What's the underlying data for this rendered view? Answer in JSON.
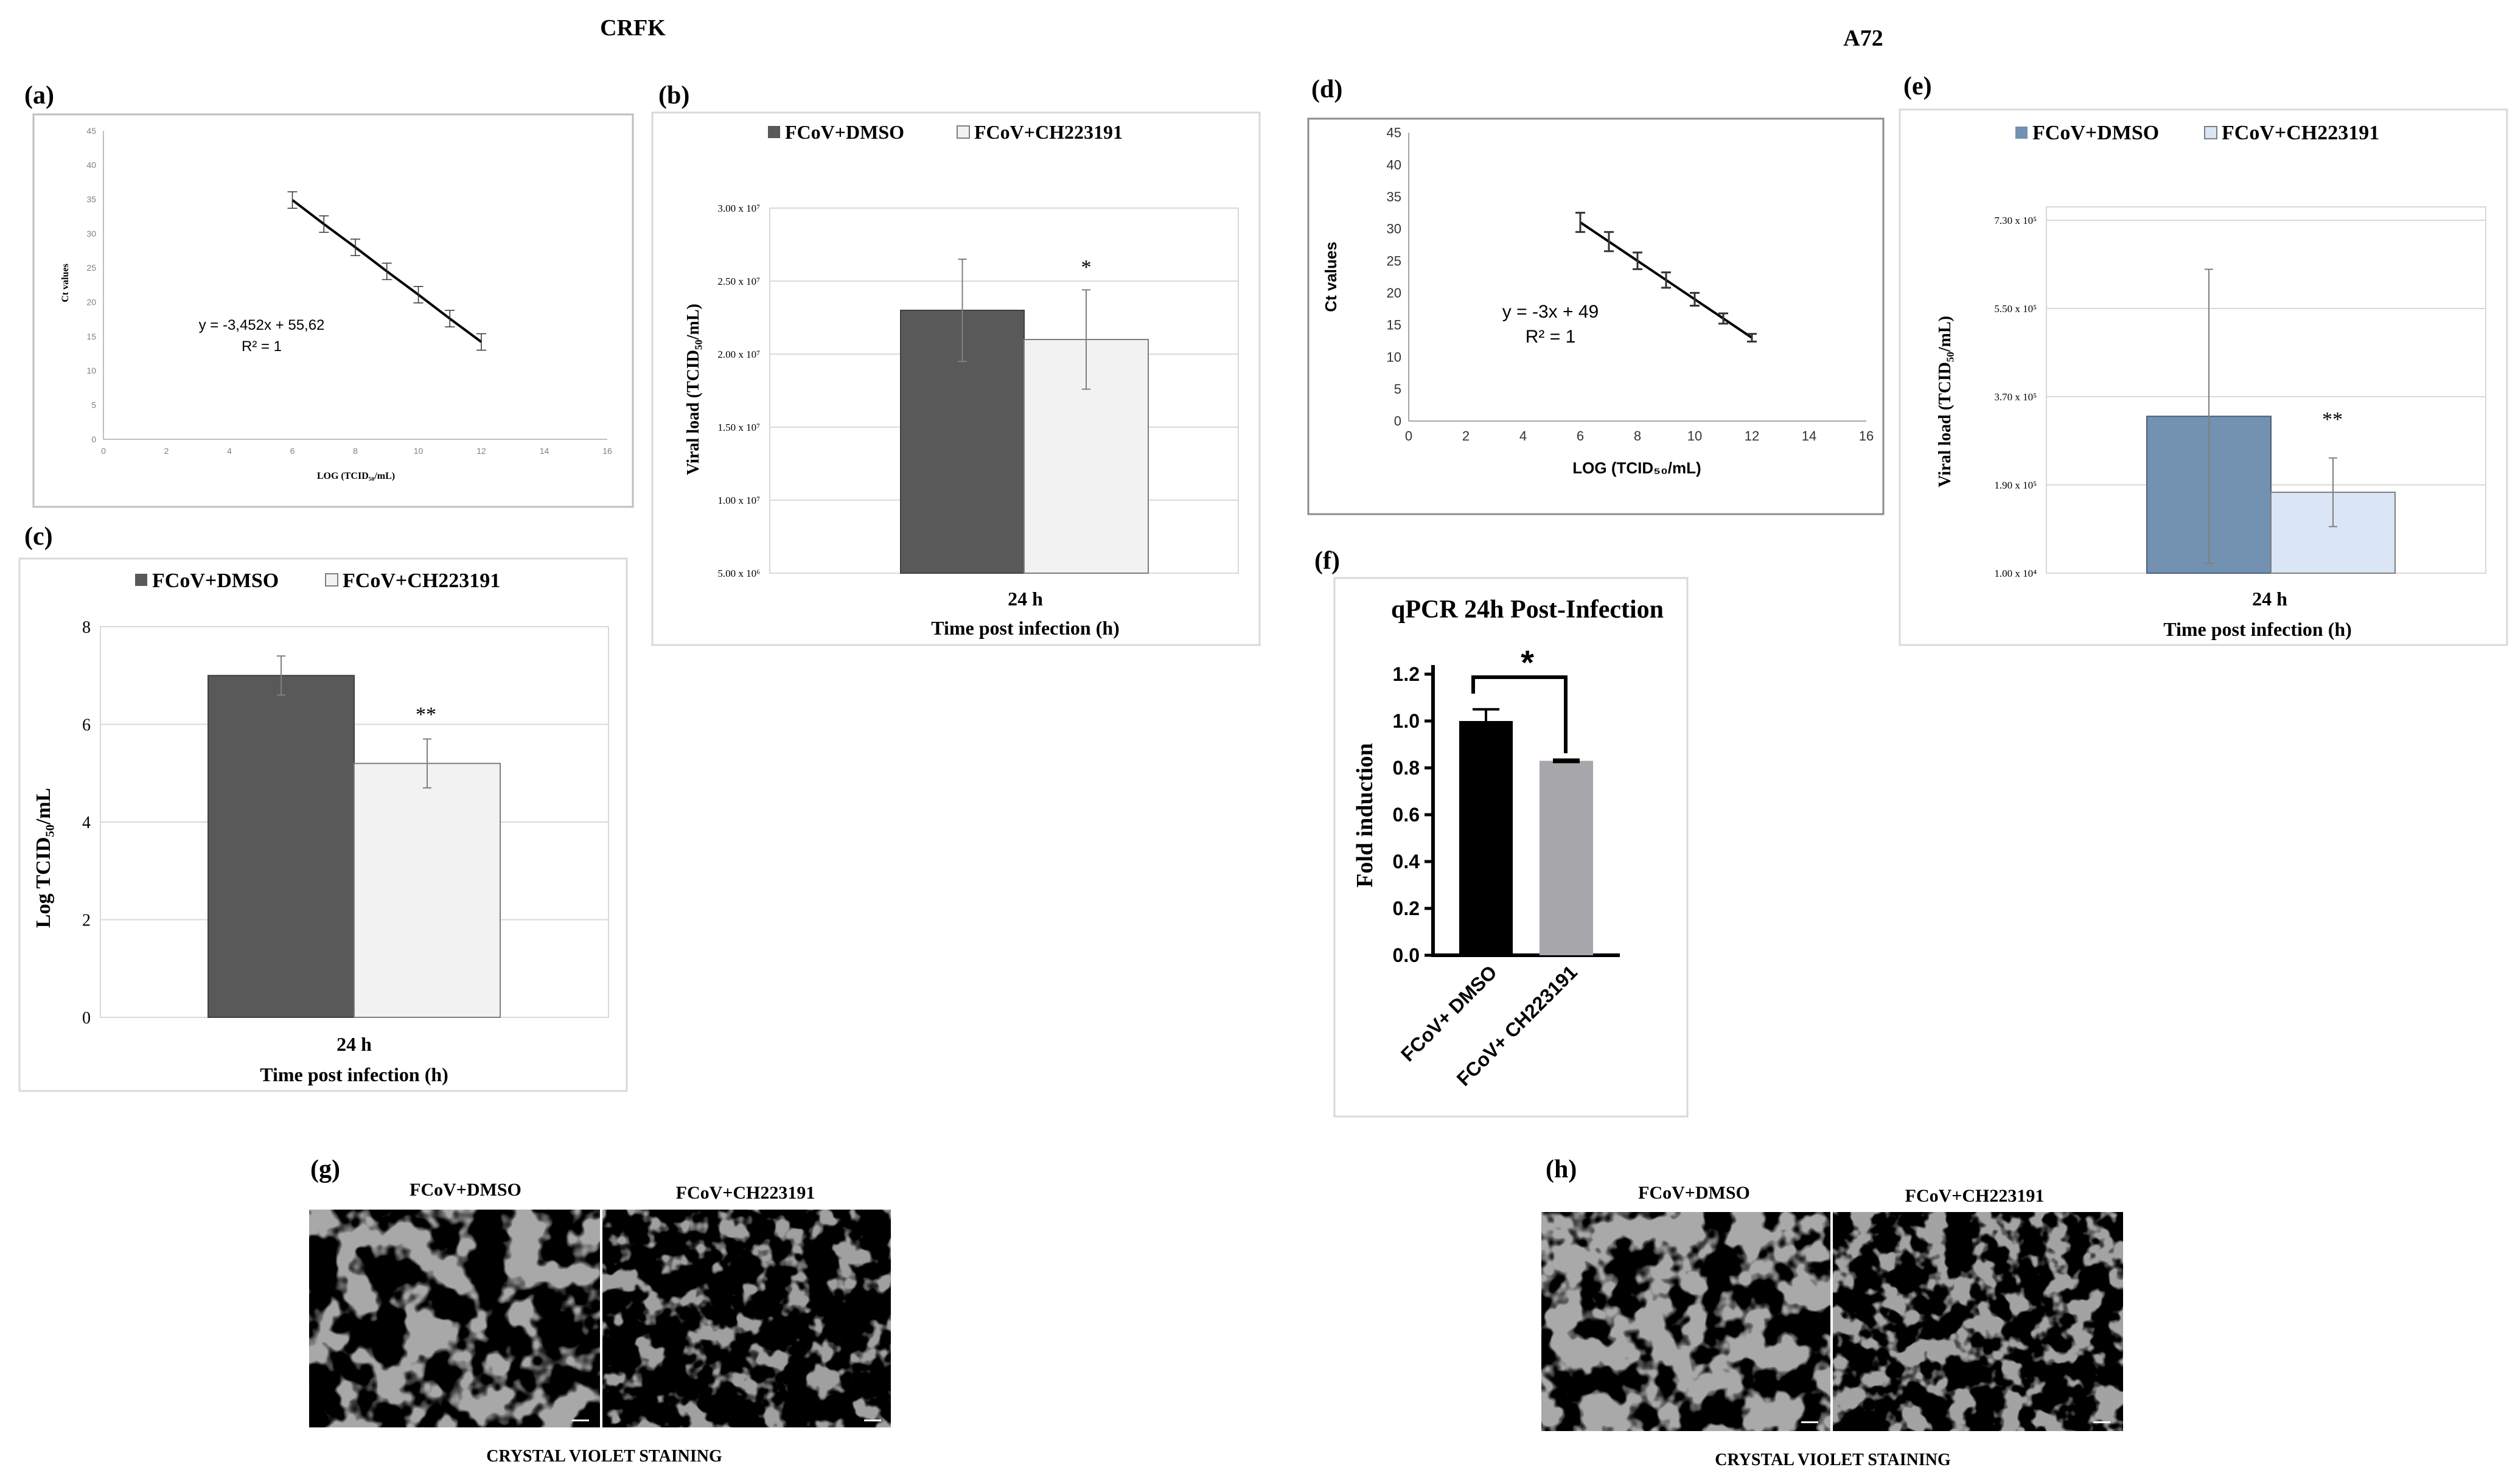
{
  "figure": {
    "group_left": "CRFK",
    "group_right": "A72",
    "labels": {
      "a": "(a)",
      "b": "(b)",
      "c": "(c)",
      "d": "(d)",
      "e": "(e)",
      "f": "(f)",
      "g": "(g)",
      "h": "(h)"
    },
    "legend": {
      "dmso": "FCoV+DMSO",
      "ch": "FCoV+CH223191"
    },
    "colors": {
      "dark_gray": "#595959",
      "light_gray": "#f2f2f2",
      "steel_blue": "#7391b0",
      "light_blue": "#dae6f6",
      "black": "#000000",
      "mid_gray": "#a6a6ab"
    },
    "g": {
      "left_caption": "FCoV+DMSO",
      "right_caption": "FCoV+CH223191",
      "footer": "CRYSTAL VIOLET STAINING"
    },
    "h": {
      "left_caption": "FCoV+DMSO",
      "right_caption": "FCoV+CH223191",
      "footer": "CRYSTAL VIOLET STAINING"
    }
  },
  "chart_data": [
    {
      "id": "a",
      "type": "line",
      "x": [
        6,
        7,
        8,
        9,
        10,
        11,
        12
      ],
      "y": [
        34.9,
        31.4,
        28.0,
        24.5,
        21.1,
        17.6,
        14.2
      ],
      "xlabel": "LOG (TCID₅₀/mL)",
      "ylabel": "Ct values",
      "xlim": [
        0,
        16
      ],
      "ylim": [
        0,
        45
      ],
      "xticks": [
        "0",
        "2",
        "4",
        "6",
        "8",
        "10",
        "12",
        "14",
        "16"
      ],
      "yticks": [
        "0",
        "5",
        "10",
        "15",
        "20",
        "25",
        "30",
        "35",
        "40",
        "45"
      ],
      "equation": "y = -3,452x + 55,62",
      "r2": "R² = 1",
      "grid": false
    },
    {
      "id": "b",
      "type": "bar",
      "categories": [
        "24 h"
      ],
      "xlabel": "Time post infection (h)",
      "ylabel": "Viral load (TCID₅₀/mL)",
      "yticks": [
        "5.00 x 10⁶",
        "1.00 x 10⁷",
        "1.50 x 10⁷",
        "2.00 x 10⁷",
        "2.50 x 10⁷",
        "3.00 x 10⁷"
      ],
      "series": [
        {
          "name": "FCoV+DMSO",
          "values": [
            23000000
          ],
          "error": [
            3500000
          ]
        },
        {
          "name": "FCoV+CH223191",
          "values": [
            21000000
          ],
          "error": [
            3400000
          ]
        }
      ],
      "annotation": "*",
      "grid": true,
      "legend": "top"
    },
    {
      "id": "c",
      "type": "bar",
      "categories": [
        "24 h"
      ],
      "xlabel": "Time post infection (h)",
      "ylabel": "Log TCID₅₀/mL",
      "ylim": [
        0,
        8
      ],
      "yticks": [
        "0",
        "2",
        "4",
        "6",
        "8"
      ],
      "series": [
        {
          "name": "FCoV+DMSO",
          "values": [
            7.0
          ],
          "error": [
            0.4
          ]
        },
        {
          "name": "FCoV+CH223191",
          "values": [
            5.2
          ],
          "error": [
            0.5
          ]
        }
      ],
      "annotation": "**",
      "grid": true,
      "legend": "top"
    },
    {
      "id": "d",
      "type": "line",
      "x": [
        6,
        7,
        8,
        9,
        10,
        11,
        12
      ],
      "y": [
        31,
        28,
        25,
        22,
        19,
        16,
        13
      ],
      "error": [
        1.5,
        1.5,
        1.3,
        1.2,
        1.0,
        0.8,
        0.6
      ],
      "xlabel": "LOG (TCID₅₀/mL)",
      "ylabel": "Ct values",
      "xlim": [
        0,
        16
      ],
      "ylim": [
        0,
        45
      ],
      "xticks": [
        "0",
        "2",
        "4",
        "6",
        "8",
        "10",
        "12",
        "14",
        "16"
      ],
      "yticks": [
        "0",
        "5",
        "10",
        "15",
        "20",
        "25",
        "30",
        "35",
        "40",
        "45"
      ],
      "equation": "y = -3x + 49",
      "r2": "R² = 1",
      "grid": false
    },
    {
      "id": "e",
      "type": "bar",
      "categories": [
        "24 h"
      ],
      "xlabel": "Time post infection (h)",
      "ylabel": "Viral load (TCID₅₀/mL)",
      "yticks": [
        "1.00 x 10⁴",
        "1.90 x 10⁵",
        "3.70 x 10⁵",
        "5.50 x 10⁵",
        "7.30 x 10⁵"
      ],
      "series": [
        {
          "name": "FCoV+DMSO",
          "values": [
            330000
          ],
          "error": [
            300000
          ]
        },
        {
          "name": "FCoV+CH223191",
          "values": [
            175000
          ],
          "error": [
            70000
          ]
        }
      ],
      "annotation": "**",
      "grid": true,
      "legend": "top"
    },
    {
      "id": "f",
      "type": "bar",
      "title": "qPCR 24h Post-Infection",
      "categories": [
        "FCoV+ DMSO",
        "FCoV+ CH223191"
      ],
      "ylabel": "Fold induction",
      "ylim": [
        0,
        1.2
      ],
      "yticks": [
        "0.0",
        "0.2",
        "0.4",
        "0.6",
        "0.8",
        "1.0",
        "1.2"
      ],
      "series": [
        {
          "values": [
            1.0,
            0.83
          ],
          "error": [
            0.05,
            0.005
          ]
        }
      ],
      "annotation": "*",
      "grid": false
    }
  ]
}
